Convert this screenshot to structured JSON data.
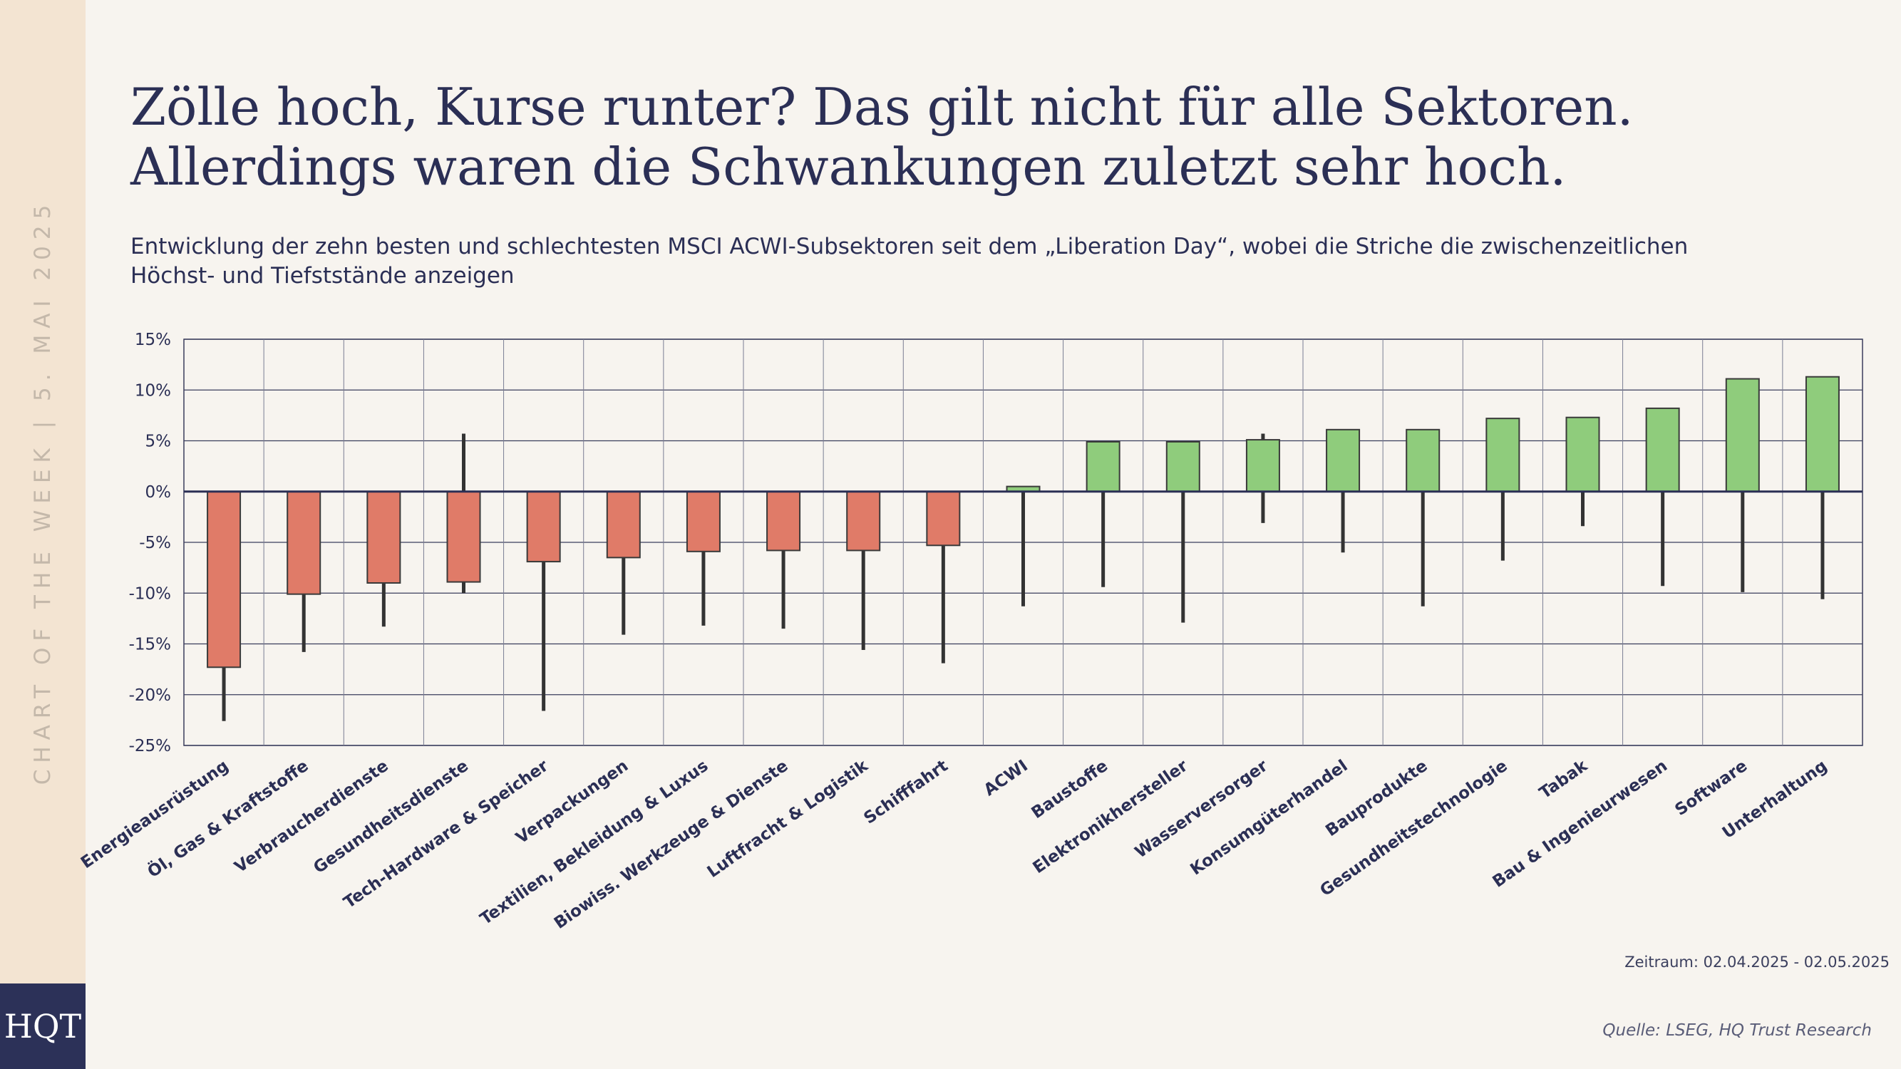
{
  "sidebar": {
    "text": "CHART OF THE WEEK | 5. MAI 2025"
  },
  "logo": {
    "text": "HQT"
  },
  "title_lines": [
    "Zölle hoch, Kurse runter? Das gilt nicht für alle Sektoren.",
    "Allerdings waren die Schwankungen zuletzt sehr hoch."
  ],
  "subtitle_lines": [
    "Entwicklung der zehn besten und schlechtesten MSCI ACWI-Subsektoren seit dem „Liberation Day“, wobei die Striche die zwischenzeitlichen",
    "Höchst- und Tiefststände anzeigen"
  ],
  "footer": {
    "period": "Zeitraum: 02.04.2025 - 02.05.2025",
    "source": "Quelle: LSEG, HQ Trust Research"
  },
  "colors": {
    "negative": "#e07b68",
    "positive": "#8fcc7c",
    "whisker": "#333333",
    "axis": "#2b2f55",
    "grid": "#3a3d5c"
  },
  "chart_data": {
    "type": "bar",
    "ylim": [
      -25,
      15
    ],
    "yticks": [
      15,
      10,
      5,
      0,
      -5,
      -10,
      -15,
      -20,
      -25
    ],
    "ytick_labels": [
      "15%",
      "10%",
      "5%",
      "0%",
      "-5%",
      "-10%",
      "-15%",
      "-20%",
      "-25%"
    ],
    "grid": true,
    "categories": [
      "Energieausrüstung",
      "Öl, Gas & Kraftstoffe",
      "Verbraucherdienste",
      "Gesundheitsdienste",
      "Tech-Hardware & Speicher",
      "Verpackungen",
      "Textilien, Bekleidung & Luxus",
      "Biowiss. Werkzeuge & Dienste",
      "Luftfracht & Logistik",
      "Schifffahrt",
      "ACWI",
      "Baustoffe",
      "Elektronikhersteller",
      "Wasserversorger",
      "Konsumgüterhandel",
      "Bauprodukte",
      "Gesundheitstechnologie",
      "Tabak",
      "Bau & Ingenieurwesen",
      "Software",
      "Unterhaltung"
    ],
    "values": [
      -17.3,
      -10.1,
      -9.0,
      -8.9,
      -6.9,
      -6.5,
      -5.9,
      -5.8,
      -5.8,
      -5.3,
      0.5,
      4.9,
      4.9,
      5.1,
      6.1,
      6.1,
      7.2,
      7.3,
      8.2,
      11.1,
      11.3
    ],
    "high": [
      0,
      0,
      0,
      5.7,
      0,
      0,
      0,
      0,
      0,
      0,
      0.5,
      4.9,
      4.9,
      5.7,
      6.1,
      6.1,
      7.2,
      7.3,
      8.2,
      11.1,
      11.3
    ],
    "low": [
      -22.6,
      -15.8,
      -13.3,
      -10.0,
      -21.6,
      -14.1,
      -13.2,
      -13.5,
      -15.6,
      -16.9,
      -11.3,
      -9.4,
      -12.9,
      -3.1,
      -6.0,
      -11.3,
      -6.8,
      -3.4,
      -9.3,
      -9.9,
      -10.6
    ]
  }
}
